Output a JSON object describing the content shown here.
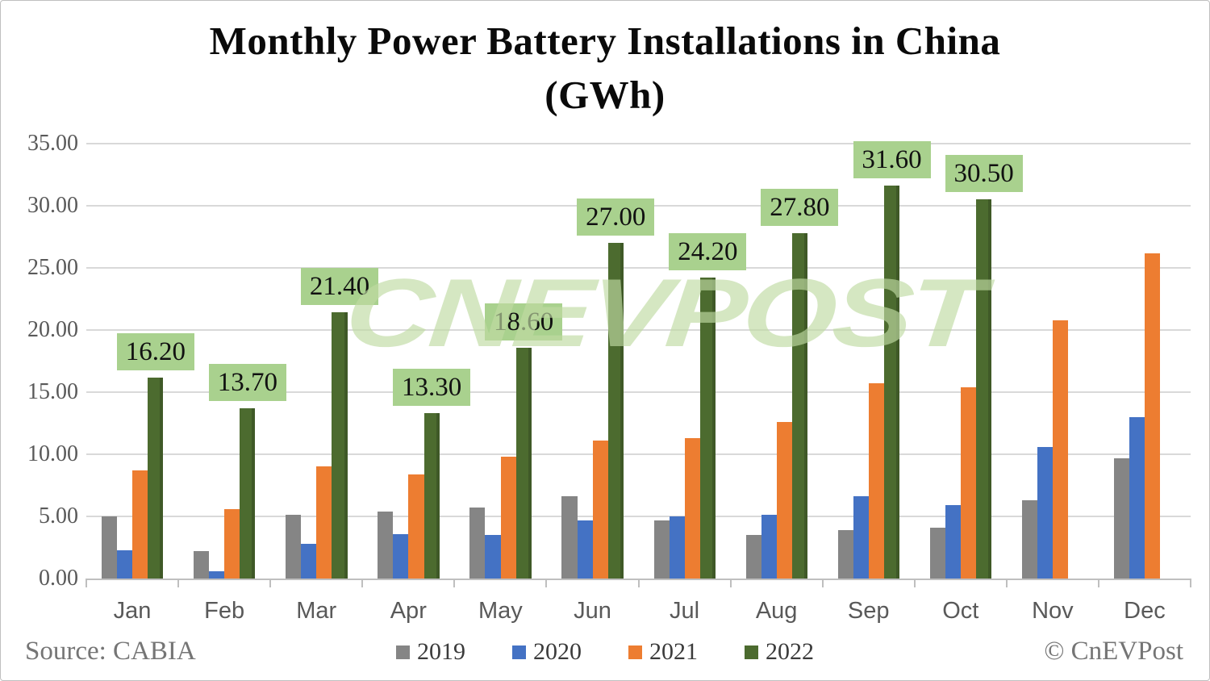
{
  "title": {
    "line1": "Monthly Power Battery Installations in China",
    "line2": "(GWh)"
  },
  "watermark_text": "CNEVPOST",
  "footer": {
    "source_label": "Source: CABIA",
    "copyright_label": "© CnEVPost"
  },
  "colors": {
    "series_2019": "#858585",
    "series_2020": "#4472c4",
    "series_2021": "#ed7d31",
    "series_2022": "#4c6b2f",
    "label_box_bg": "#a9d18e",
    "gridline": "#d9d9d9",
    "axis": "#bfbfbf",
    "tick_text": "#595959",
    "footer_text": "#757575",
    "watermark": "#bfdba2"
  },
  "chart_data": {
    "type": "bar",
    "title": "Monthly Power Battery Installations in China (GWh)",
    "categories": [
      "Jan",
      "Feb",
      "Mar",
      "Apr",
      "May",
      "Jun",
      "Jul",
      "Aug",
      "Sep",
      "Oct",
      "Nov",
      "Dec"
    ],
    "series": [
      {
        "name": "2019",
        "color": "#858585",
        "values": [
          5.0,
          2.2,
          5.1,
          5.4,
          5.7,
          6.6,
          4.7,
          3.5,
          3.9,
          4.1,
          6.3,
          9.7
        ]
      },
      {
        "name": "2020",
        "color": "#4472c4",
        "values": [
          2.3,
          0.6,
          2.8,
          3.6,
          3.5,
          4.7,
          5.0,
          5.1,
          6.6,
          5.9,
          10.6,
          13.0
        ]
      },
      {
        "name": "2021",
        "color": "#ed7d31",
        "values": [
          8.7,
          5.6,
          9.0,
          8.4,
          9.8,
          11.1,
          11.3,
          12.6,
          15.7,
          15.4,
          20.8,
          26.2
        ]
      },
      {
        "name": "2022",
        "color": "#4c6b2f",
        "values": [
          16.2,
          13.7,
          21.4,
          13.3,
          18.6,
          27.0,
          24.2,
          27.8,
          31.6,
          30.5,
          null,
          null
        ],
        "data_labels": [
          "16.20",
          "13.70",
          "21.40",
          "13.30",
          "18.60",
          "27.00",
          "24.20",
          "27.80",
          "31.60",
          "30.50",
          null,
          null
        ]
      }
    ],
    "ylim": [
      0,
      35
    ],
    "ytick_step": 5,
    "ytick_format": "two_decimals",
    "grid": true,
    "legend_position": "bottom"
  }
}
